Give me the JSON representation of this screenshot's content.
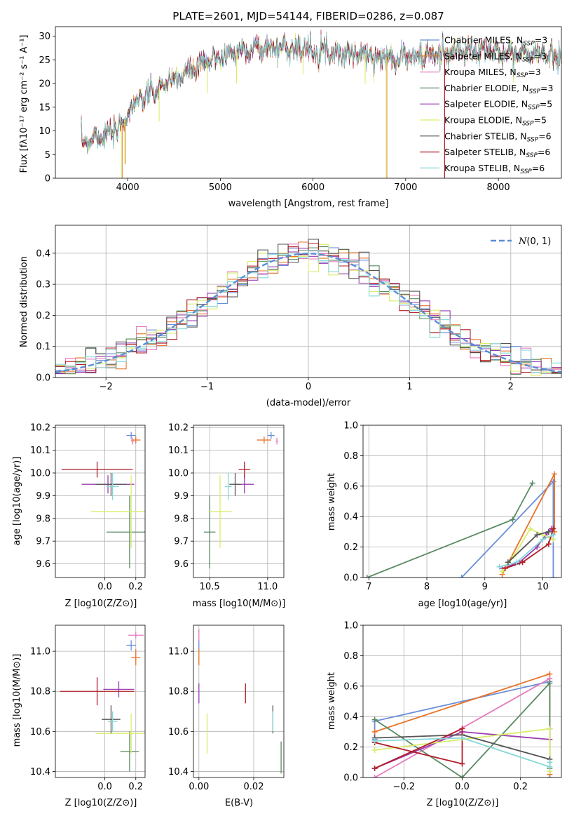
{
  "colors": {
    "Chabrier MILES": "#6a8fd8",
    "Salpeter MILES": "#e8732a",
    "Kroupa MILES": "#e87ac0",
    "Chabrier ELODIE": "#5a8a62",
    "Salpeter ELODIE": "#9a3db0",
    "Kroupa ELODIE": "#d8ee6a",
    "Chabrier STELIB": "#555555",
    "Salpeter STELIB": "#b01e2a",
    "Kroupa STELIB": "#86d8d8"
  },
  "chart_data": [
    {
      "type": "line",
      "title": "PLATE=2601, MJD=54144, FIBERID=0286, z=0.087",
      "xlabel": "wavelength [Angstrom, rest frame]",
      "ylabel": "Flux [fλ10⁻¹⁷ erg cm⁻² s⁻¹ A⁻¹]",
      "xlim": [
        3220,
        8680
      ],
      "ylim": [
        0,
        32
      ],
      "xticks": [
        4000,
        5000,
        6000,
        7000,
        8000
      ],
      "yticks": [
        0,
        5,
        10,
        15,
        20,
        25,
        30
      ],
      "legend_position": "top-right",
      "grid": false,
      "series_names": [
        "Chabrier MILES",
        "Salpeter MILES",
        "Kroupa MILES",
        "Chabrier ELODIE",
        "Salpeter ELODIE",
        "Kroupa ELODIE",
        "Chabrier STELIB",
        "Salpeter STELIB",
        "Kroupa STELIB"
      ],
      "legend": [
        {
          "name": "Chabrier MILES",
          "nssp": "3"
        },
        {
          "name": "Salpeter MILES",
          "nssp": "3"
        },
        {
          "name": "Kroupa MILES",
          "nssp": "3"
        },
        {
          "name": "Chabrier ELODIE",
          "nssp": "3"
        },
        {
          "name": "Salpeter ELODIE",
          "nssp": "5"
        },
        {
          "name": "Kroupa ELODIE",
          "nssp": "5"
        },
        {
          "name": "Chabrier STELIB",
          "nssp": "6"
        },
        {
          "name": "Salpeter STELIB",
          "nssp": "6"
        },
        {
          "name": "Kroupa STELIB",
          "nssp": "6"
        }
      ],
      "continuum": {
        "x": [
          3500,
          3650,
          3850,
          3950,
          4050,
          4150,
          4250,
          4350,
          4500,
          4700,
          4900,
          5100,
          5300,
          5500,
          5700,
          5900,
          6100,
          6300,
          6500,
          6700,
          6900,
          7100,
          7300,
          7500,
          7700,
          7900,
          8100,
          8300,
          8500,
          8680
        ],
        "y": [
          7.5,
          8.8,
          9.5,
          11.5,
          15.5,
          16.5,
          17.8,
          19,
          20.8,
          22.8,
          25,
          26.3,
          27.5,
          27.3,
          27.8,
          27.2,
          27.2,
          26.3,
          26.2,
          25.5,
          25.7,
          25.6,
          25.9,
          26.5,
          26.8,
          26.9,
          26.4,
          26.3,
          26.0,
          26.0
        ]
      },
      "spikes": [
        {
          "x": 3934,
          "ylow": 0
        },
        {
          "x": 3969,
          "ylow": 3
        },
        {
          "x": 4340,
          "ylow": 12
        },
        {
          "x": 4861,
          "ylow": 18
        },
        {
          "x": 5175,
          "ylow": 20
        },
        {
          "x": 5893,
          "ylow": 22
        },
        {
          "x": 6563,
          "ylow": 20
        },
        {
          "x": 6790,
          "ylow": 0
        }
      ],
      "salpeter_stelib_drop_x": 7420
    },
    {
      "type": "bar",
      "xlabel": "(data-model)/error",
      "ylabel": "Normed distribution",
      "xlim": [
        -2.5,
        2.5
      ],
      "ylim": [
        0,
        0.49
      ],
      "xticks": [
        -2,
        -1,
        0,
        1,
        2
      ],
      "yticks": [
        0.0,
        0.1,
        0.2,
        0.3,
        0.4
      ],
      "grid": true,
      "legend": [
        {
          "name": "N(0,1)",
          "style": "dashed"
        }
      ],
      "legend_position": "top-right",
      "bin_edges_start": -2.5,
      "bin_width": 0.1,
      "bins": 50
    },
    {
      "type": "scatter",
      "xlabel": "Z [log10(Z/Z⊙)]",
      "ylabel": "age  [log10(age/yr)]",
      "xlim": [
        -0.32,
        0.26
      ],
      "ylim": [
        9.54,
        10.21
      ],
      "xticks": [
        0.0,
        0.2
      ],
      "yticks": [
        9.6,
        9.7,
        9.8,
        9.9,
        10.0,
        10.1,
        10.2
      ],
      "grid": true,
      "points": [
        {
          "series": "Chabrier MILES",
          "x": 0.17,
          "y": 10.165,
          "xerr": 0.03,
          "yerr": 0.015
        },
        {
          "series": "Salpeter MILES",
          "x": 0.2,
          "y": 10.145,
          "xerr": 0.03,
          "yerr": 0.015
        },
        {
          "series": "Kroupa MILES",
          "x": 0.18,
          "y": 10.14,
          "xerr": 0.01,
          "yerr": 0.015
        },
        {
          "series": "Chabrier ELODIE",
          "x": 0.16,
          "y": 9.74,
          "xerr": 0.15,
          "yerr": 0.16
        },
        {
          "series": "Salpeter ELODIE",
          "x": 0.02,
          "y": 9.95,
          "xerr": 0.17,
          "yerr": 0.04
        },
        {
          "series": "Kroupa ELODIE",
          "x": 0.17,
          "y": 9.83,
          "xerr": 0.26,
          "yerr": 0.16
        },
        {
          "series": "Chabrier STELIB",
          "x": 0.04,
          "y": 9.95,
          "xerr": 0.1,
          "yerr": 0.05
        },
        {
          "series": "Salpeter STELIB",
          "x": -0.05,
          "y": 10.015,
          "xerr": 0.23,
          "yerr": 0.035
        },
        {
          "series": "Kroupa STELIB",
          "x": 0.05,
          "y": 9.94,
          "xerr": 0.04,
          "yerr": 0.06
        }
      ]
    },
    {
      "type": "scatter",
      "xlabel": "mass [log10(M/M⊙)]",
      "xlim": [
        10.36,
        11.14
      ],
      "ylim": [
        9.54,
        10.21
      ],
      "xticks": [
        10.5,
        11.0
      ],
      "yticks": [
        9.6,
        9.7,
        9.8,
        9.9,
        10.0,
        10.1,
        10.2
      ],
      "grid": true,
      "points": [
        {
          "series": "Chabrier MILES",
          "x": 11.03,
          "y": 10.165,
          "xerr": 0.03,
          "yerr": 0.015
        },
        {
          "series": "Salpeter MILES",
          "x": 10.97,
          "y": 10.145,
          "xerr": 0.06,
          "yerr": 0.015
        },
        {
          "series": "Kroupa MILES",
          "x": 11.08,
          "y": 10.14,
          "xerr": 0.01,
          "yerr": 0.015
        },
        {
          "series": "Chabrier ELODIE",
          "x": 10.5,
          "y": 9.74,
          "xerr": 0.05,
          "yerr": 0.16
        },
        {
          "series": "Salpeter ELODIE",
          "x": 10.8,
          "y": 9.95,
          "xerr": 0.08,
          "yerr": 0.04
        },
        {
          "series": "Kroupa ELODIE",
          "x": 10.59,
          "y": 9.83,
          "xerr": 0.1,
          "yerr": 0.16
        },
        {
          "series": "Chabrier STELIB",
          "x": 10.72,
          "y": 9.95,
          "xerr": 0.05,
          "yerr": 0.05
        },
        {
          "series": "Salpeter STELIB",
          "x": 10.8,
          "y": 10.015,
          "xerr": 0.05,
          "yerr": 0.035
        },
        {
          "series": "Kroupa STELIB",
          "x": 10.66,
          "y": 9.94,
          "xerr": 0.03,
          "yerr": 0.06
        }
      ]
    },
    {
      "type": "line",
      "xlabel": "age  [log10(age/yr)]",
      "ylabel": "mass weight",
      "xlim": [
        6.9,
        10.32
      ],
      "ylim": [
        0,
        1.0
      ],
      "xticks": [
        7,
        8,
        9,
        10
      ],
      "yticks": [
        0.0,
        0.2,
        0.4,
        0.6,
        0.8,
        1.0
      ],
      "grid": true,
      "series": [
        {
          "name": "Chabrier MILES",
          "x": [
            8.6,
            10.18,
            10.18
          ],
          "y": [
            0.0,
            0.63,
            0.0
          ]
        },
        {
          "name": "Salpeter MILES",
          "x": [
            9.3,
            10.2,
            10.2
          ],
          "y": [
            0.02,
            0.68,
            0.3
          ]
        },
        {
          "name": "Chabrier ELODIE",
          "x": [
            6.97,
            9.48,
            9.82
          ],
          "y": [
            0.0,
            0.38,
            0.62
          ]
        },
        {
          "name": "Salpeter ELODIE",
          "x": [
            9.3,
            9.6,
            9.9,
            10.05,
            10.15
          ],
          "y": [
            0.06,
            0.1,
            0.2,
            0.28,
            0.32
          ]
        },
        {
          "name": "Kroupa ELODIE",
          "x": [
            9.3,
            9.5,
            9.78,
            10.0,
            10.18
          ],
          "y": [
            0.04,
            0.14,
            0.32,
            0.28,
            0.25
          ]
        },
        {
          "name": "Salpeter STELIB",
          "x": [
            9.35,
            9.65,
            10.1,
            10.18
          ],
          "y": [
            0.06,
            0.1,
            0.22,
            0.32
          ]
        },
        {
          "name": "Kroupa STELIB",
          "x": [
            9.25,
            9.55,
            10.0,
            10.18
          ],
          "y": [
            0.07,
            0.1,
            0.25,
            0.28
          ]
        },
        {
          "name": "Chabrier STELIB",
          "x": [
            9.4,
            9.9,
            10.1
          ],
          "y": [
            0.1,
            0.28,
            0.3
          ]
        }
      ]
    },
    {
      "type": "scatter",
      "xlabel": "Z [log10(Z/Z⊙)]",
      "ylabel": "mass [log10(M/M⊙)]",
      "xlim": [
        -0.32,
        0.26
      ],
      "ylim": [
        10.37,
        11.13
      ],
      "xticks": [
        0.0,
        0.2
      ],
      "yticks": [
        10.4,
        10.6,
        10.8,
        11.0
      ],
      "grid": true,
      "points": [
        {
          "series": "Chabrier MILES",
          "x": 0.17,
          "y": 11.03,
          "xerr": 0.03,
          "yerr": 0.025
        },
        {
          "series": "Salpeter MILES",
          "x": 0.2,
          "y": 10.97,
          "xerr": 0.03,
          "yerr": 0.04
        },
        {
          "series": "Kroupa MILES",
          "x": 0.2,
          "y": 11.08,
          "xerr": 0.05,
          "yerr": 0.015
        },
        {
          "series": "Chabrier ELODIE",
          "x": 0.16,
          "y": 10.5,
          "xerr": 0.06,
          "yerr": 0.1
        },
        {
          "series": "Salpeter ELODIE",
          "x": 0.09,
          "y": 10.81,
          "xerr": 0.1,
          "yerr": 0.04
        },
        {
          "series": "Kroupa ELODIE",
          "x": 0.17,
          "y": 10.59,
          "xerr": 0.23,
          "yerr": 0.1
        },
        {
          "series": "Chabrier STELIB",
          "x": 0.04,
          "y": 10.66,
          "xerr": 0.06,
          "yerr": 0.07
        },
        {
          "series": "Salpeter STELIB",
          "x": -0.05,
          "y": 10.8,
          "xerr": 0.24,
          "yerr": 0.07
        },
        {
          "series": "Kroupa STELIB",
          "x": 0.05,
          "y": 10.65,
          "xerr": 0.03,
          "yerr": 0.05
        }
      ]
    },
    {
      "type": "scatter",
      "xlabel": "E(B-V)",
      "xlim": [
        -0.002,
        0.031
      ],
      "ylim": [
        10.37,
        11.13
      ],
      "xticks": [
        0.0,
        0.02
      ],
      "yticks": [
        10.4,
        10.6,
        10.8,
        11.0
      ],
      "grid": true,
      "points": [
        {
          "series": "Chabrier MILES",
          "x": 0.0,
          "y": 11.03,
          "xerr": 0,
          "yerr": 0.025
        },
        {
          "series": "Salpeter MILES",
          "x": 0.0,
          "y": 10.97,
          "xerr": 0,
          "yerr": 0.04
        },
        {
          "series": "Kroupa MILES",
          "x": 0.0,
          "y": 11.08,
          "xerr": 0,
          "yerr": 0.03
        },
        {
          "series": "Chabrier ELODIE",
          "x": 0.03,
          "y": 10.47,
          "xerr": 0,
          "yerr": 0.08
        },
        {
          "series": "Salpeter ELODIE",
          "x": 0.0,
          "y": 10.79,
          "xerr": 0,
          "yerr": 0.05
        },
        {
          "series": "Kroupa ELODIE",
          "x": 0.003,
          "y": 10.59,
          "xerr": 0,
          "yerr": 0.1
        },
        {
          "series": "Chabrier STELIB",
          "x": 0.027,
          "y": 10.66,
          "xerr": 0,
          "yerr": 0.07
        },
        {
          "series": "Salpeter STELIB",
          "x": 0.017,
          "y": 10.79,
          "xerr": 0,
          "yerr": 0.05
        },
        {
          "series": "Kroupa STELIB",
          "x": 0.027,
          "y": 10.65,
          "xerr": 0,
          "yerr": 0.05
        }
      ]
    },
    {
      "type": "line",
      "xlabel": "Z [log10(Z/Z⊙)]",
      "ylabel": "mass weight",
      "xlim": [
        -0.34,
        0.34
      ],
      "ylim": [
        0,
        1.0
      ],
      "xticks": [
        -0.2,
        0.0,
        0.2
      ],
      "yticks": [
        0.0,
        0.2,
        0.4,
        0.6,
        0.8,
        1.0
      ],
      "grid": true,
      "series": [
        {
          "name": "Chabrier MILES",
          "x": [
            -0.3,
            -0.3,
            0.3,
            0.3
          ],
          "y": [
            0.25,
            0.37,
            0.63,
            0.0
          ]
        },
        {
          "name": "Salpeter MILES",
          "x": [
            -0.3,
            0.3,
            0.3
          ],
          "y": [
            0.3,
            0.68,
            0.02
          ]
        },
        {
          "name": "Kroupa MILES",
          "x": [
            -0.3,
            0.3
          ],
          "y": [
            0.0,
            0.65
          ]
        },
        {
          "name": "Chabrier ELODIE",
          "x": [
            -0.3,
            0.0,
            0.3,
            0.3
          ],
          "y": [
            0.38,
            0.0,
            0.62,
            0.06
          ]
        },
        {
          "name": "Salpeter ELODIE",
          "x": [
            -0.3,
            0.0,
            0.3,
            0.3
          ],
          "y": [
            0.06,
            0.3,
            0.25,
            0.32
          ]
        },
        {
          "name": "Kroupa ELODIE",
          "x": [
            -0.3,
            0.3,
            0.3
          ],
          "y": [
            0.18,
            0.32,
            0.04
          ]
        },
        {
          "name": "Chabrier STELIB",
          "x": [
            -0.3,
            0.0,
            0.3
          ],
          "y": [
            0.26,
            0.28,
            0.12
          ]
        },
        {
          "name": "Salpeter STELIB",
          "x": [
            -0.3,
            0.0,
            0.0,
            -0.3
          ],
          "y": [
            0.23,
            0.09,
            0.32,
            0.06
          ]
        },
        {
          "name": "Kroupa STELIB",
          "x": [
            -0.3,
            0.0,
            0.3,
            0.3
          ],
          "y": [
            0.24,
            0.26,
            0.07,
            0.1
          ]
        }
      ]
    }
  ]
}
